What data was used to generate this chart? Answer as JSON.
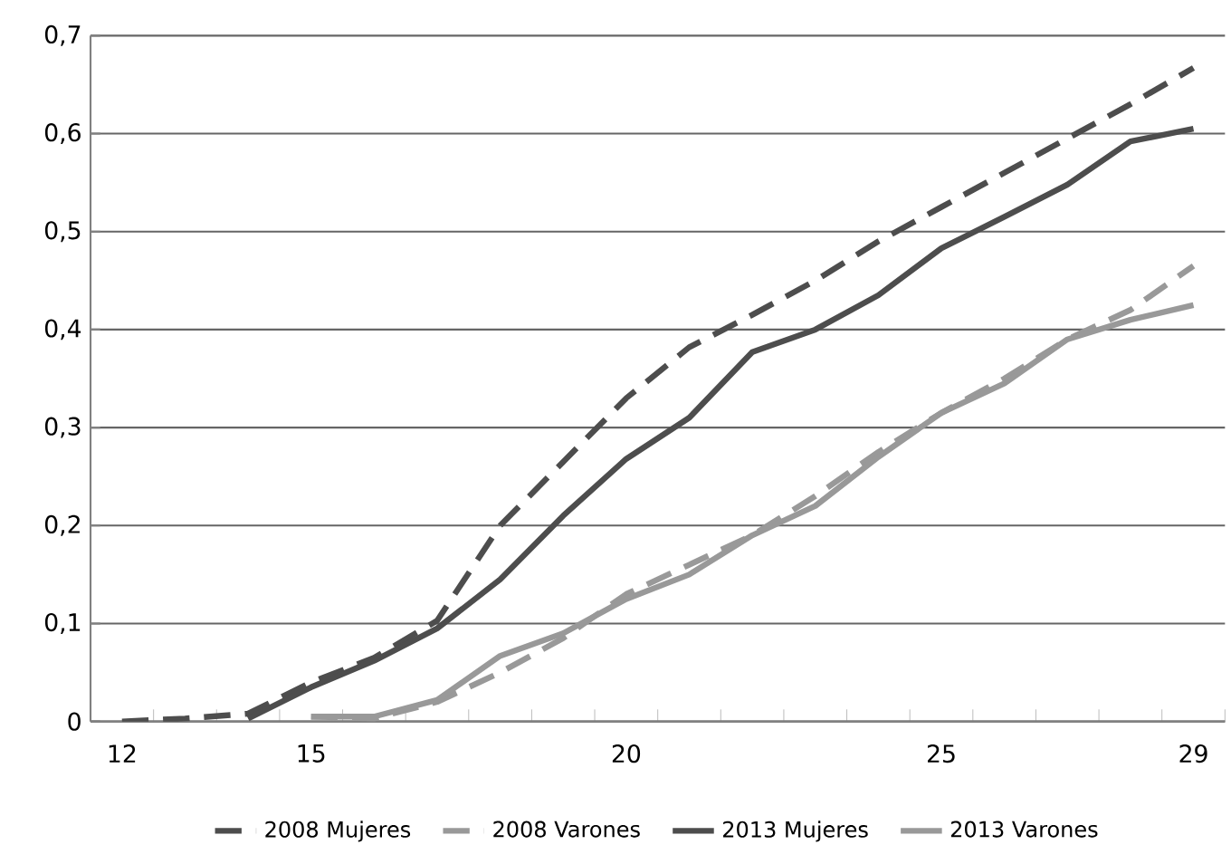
{
  "chart_data": {
    "type": "line",
    "categories": [
      "12",
      null,
      null,
      "15",
      null,
      null,
      null,
      null,
      "20",
      null,
      null,
      null,
      null,
      "25",
      null,
      null,
      null,
      "29"
    ],
    "series": [
      {
        "name": "2008 Mujeres",
        "color": "#4d4d4d",
        "line_style": "dashed",
        "values": [
          0,
          0.003,
          0.008,
          0.04,
          0.065,
          0.103,
          0.2,
          0.265,
          0.33,
          0.382,
          0.415,
          0.45,
          0.49,
          0.525,
          0.56,
          0.595,
          0.63,
          0.667
        ]
      },
      {
        "name": "2008 Varones",
        "color": "#999999",
        "line_style": "dashed",
        "values": [
          null,
          null,
          null,
          0.005,
          0.003,
          0.02,
          0.05,
          0.085,
          0.13,
          0.16,
          0.19,
          0.23,
          0.275,
          0.315,
          0.35,
          0.39,
          0.42,
          0.465
        ]
      },
      {
        "name": "2013 Mujeres",
        "color": "#4d4d4d",
        "line_style": "solid",
        "values": [
          null,
          null,
          0.003,
          0.035,
          0.062,
          0.095,
          0.145,
          0.21,
          0.268,
          0.31,
          0.377,
          0.4,
          0.435,
          0.483,
          0.515,
          0.548,
          0.592,
          0.605
        ]
      },
      {
        "name": "2013 Varones",
        "color": "#999999",
        "line_style": "solid",
        "values": [
          null,
          null,
          null,
          0.005,
          0.005,
          0.022,
          0.067,
          0.09,
          0.125,
          0.15,
          0.19,
          0.22,
          0.27,
          0.315,
          0.345,
          0.39,
          0.41,
          0.425
        ]
      }
    ],
    "ylim": [
      0,
      0.7
    ],
    "yticks": [
      0,
      {
        "value": 0.1,
        "label": "0,1"
      },
      {
        "value": 0.2,
        "label": "0,2"
      },
      {
        "value": 0.3,
        "label": "0,3"
      },
      {
        "value": 0.4,
        "label": "0,4"
      },
      {
        "value": 0.5,
        "label": "0,5"
      },
      {
        "value": 0.6,
        "label": "0,6"
      },
      {
        "value": 0.7,
        "label": "0,7"
      }
    ],
    "grid": "y",
    "legend": "bottom",
    "marker": "none"
  }
}
